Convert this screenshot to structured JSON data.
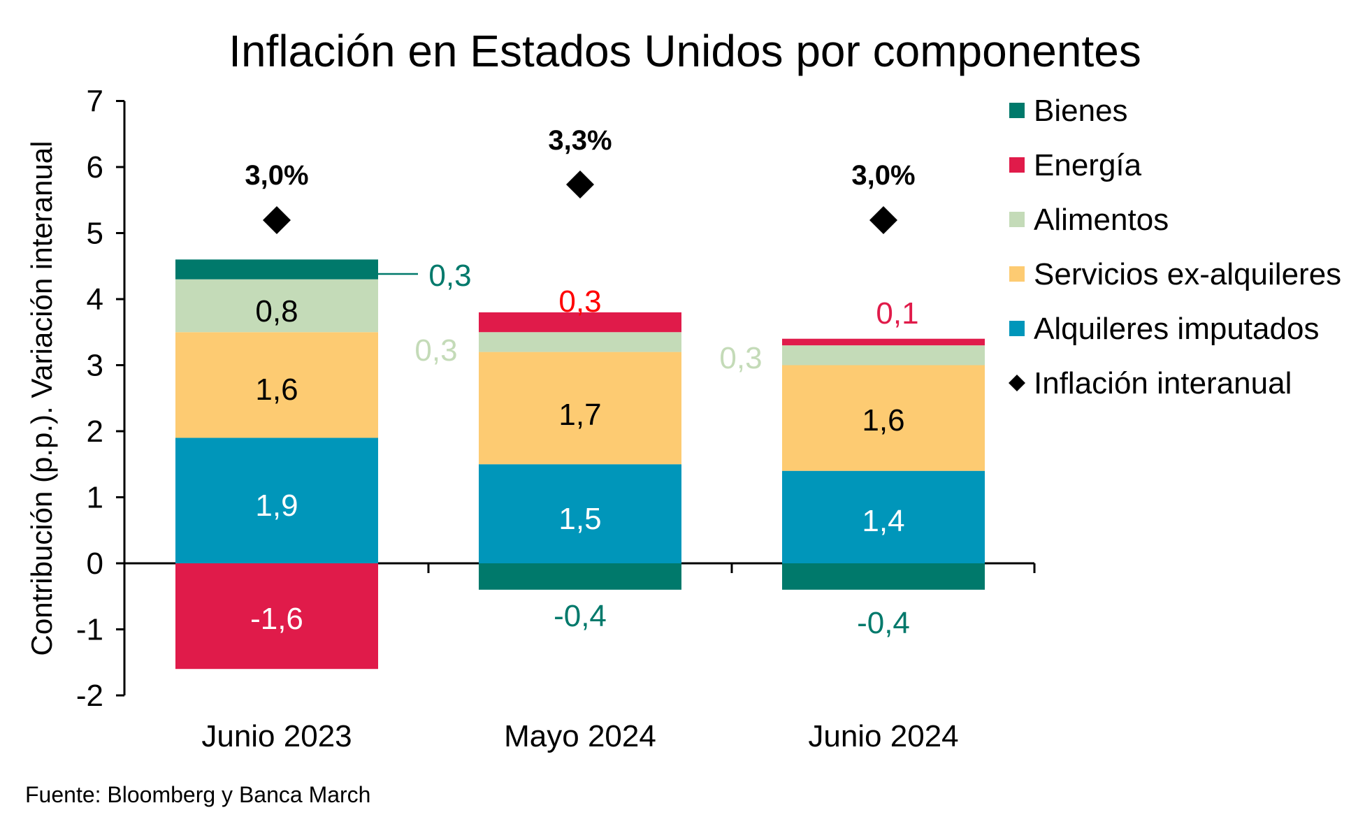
{
  "chart_data": {
    "type": "bar",
    "stacked": true,
    "title": "Inflación en Estados Unidos por componentes",
    "xlabel": "",
    "ylabel": "Contribución (p.p.). Variación interanual",
    "ylim": [
      -2,
      7
    ],
    "yticks": [
      -2,
      -1,
      0,
      1,
      2,
      3,
      4,
      5,
      6,
      7
    ],
    "ytick_labels": [
      "-2",
      "-1",
      "0",
      "1",
      "2",
      "3",
      "4",
      "5",
      "6",
      "7"
    ],
    "grid": false,
    "legend_position": "right",
    "categories": [
      "Junio 2023",
      "Mayo 2024",
      "Junio 2024"
    ],
    "series": [
      {
        "name": "Alquileres imputados",
        "color": "#0096BA",
        "values": [
          1.9,
          1.5,
          1.4
        ],
        "labels": [
          "1,9",
          "1,5",
          "1,4"
        ],
        "label_color": "#FFFFFF"
      },
      {
        "name": "Servicios ex-alquileres",
        "color": "#FDCB72",
        "values": [
          1.6,
          1.7,
          1.6
        ],
        "labels": [
          "1,6",
          "1,7",
          "1,6"
        ],
        "label_color": "#000000"
      },
      {
        "name": "Alimentos",
        "color": "#C4DBB8",
        "values": [
          0.8,
          0.3,
          0.3
        ],
        "labels": [
          "0,8",
          "0,3",
          "0,3"
        ],
        "label_color": "#000000",
        "outside_label_color": "#C4DBB8"
      },
      {
        "name": "Energía",
        "color": "#E01B4A",
        "values": [
          -1.6,
          0.3,
          0.1
        ],
        "labels": [
          "-1,6",
          "0,3",
          "0,1"
        ],
        "label_color": "#FFFFFF",
        "outside_label_colors": [
          "#FFFFFF",
          "#FF0000",
          "#E01B4A"
        ]
      },
      {
        "name": "Bienes",
        "color": "#00796B",
        "values": [
          0.3,
          -0.4,
          -0.4
        ],
        "labels": [
          "0,3",
          "-0,4",
          "-0,4"
        ],
        "label_color": "#00796B"
      }
    ],
    "markers": {
      "name": "Inflación interanual",
      "shape": "diamond",
      "color": "#000000",
      "values": [
        3.0,
        3.3,
        3.0
      ],
      "labels": [
        "3,0%",
        "3,3%",
        "3,0%"
      ]
    },
    "legend": [
      {
        "name": "Bienes",
        "color": "#00796B",
        "shape": "square"
      },
      {
        "name": "Energía",
        "color": "#E01B4A",
        "shape": "square"
      },
      {
        "name": "Alimentos",
        "color": "#C4DBB8",
        "shape": "square"
      },
      {
        "name": "Servicios ex-alquileres",
        "color": "#FDCB72",
        "shape": "square"
      },
      {
        "name": "Alquileres imputados",
        "color": "#0096BA",
        "shape": "square"
      },
      {
        "name": "Inflación interanual",
        "color": "#000000",
        "shape": "diamond"
      }
    ],
    "source": "Fuente: Bloomberg y Banca March"
  }
}
